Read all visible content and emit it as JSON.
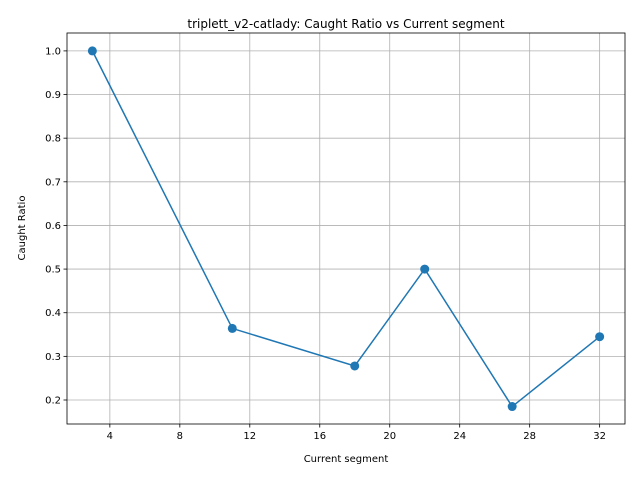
{
  "chart_data": {
    "type": "line",
    "title": "triplett_v2-catlady: Caught Ratio vs Current segment",
    "xlabel": "Current segment",
    "ylabel": "Caught Ratio",
    "xlim": [
      1.55,
      33.45
    ],
    "ylim": [
      0.145,
      1.041
    ],
    "xticks": [
      4,
      8,
      12,
      16,
      20,
      24,
      28,
      32
    ],
    "yticks": [
      0.2,
      0.3,
      0.4,
      0.5,
      0.6,
      0.7,
      0.8,
      0.9,
      1.0
    ],
    "grid": true,
    "x": [
      3,
      11,
      18,
      22,
      27,
      32
    ],
    "y": [
      1.0,
      0.364,
      0.278,
      0.5,
      0.185,
      0.345
    ],
    "color": "#1f77b4"
  }
}
